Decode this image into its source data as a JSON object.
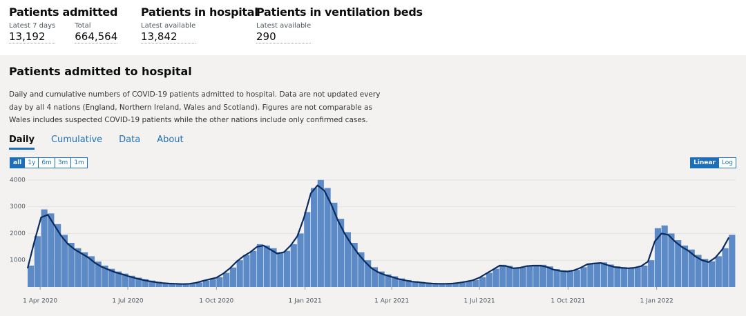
{
  "headline": [
    {
      "title": "Patients admitted",
      "items": [
        {
          "label": "Latest 7 days",
          "value": "13,192"
        },
        {
          "label": "Total",
          "value": "664,564"
        }
      ]
    },
    {
      "title": "Patients in hospital",
      "items": [
        {
          "label": "Latest available",
          "value": "13,842"
        }
      ]
    },
    {
      "title": "Patients in ventilation beds",
      "items": [
        {
          "label": "Latest available",
          "value": "290"
        }
      ]
    }
  ],
  "card": {
    "title": "Patients admitted to hospital",
    "description": "Daily and cumulative numbers of COVID-19 patients admitted to hospital. Data are not updated every day by all 4 nations (England, Northern Ireland, Wales and Scotland). Figures are not comparable as Wales includes suspected COVID-19 patients while the other nations include only confirmed cases.",
    "tabs": [
      "Daily",
      "Cumulative",
      "Data",
      "About"
    ],
    "range_buttons": [
      "all",
      "1y",
      "6m",
      "3m",
      "1m"
    ],
    "scale_buttons": [
      "Linear",
      "Log"
    ]
  },
  "chart_data": {
    "type": "bar",
    "grid": true,
    "log_scale": false,
    "xlim": [
      "2020-03-19",
      "2022-03-24"
    ],
    "xticks": [
      {
        "value": "2020-04-01",
        "label": "1 Apr 2020"
      },
      {
        "value": "2020-07-01",
        "label": "1 Jul 2020"
      },
      {
        "value": "2020-10-01",
        "label": "1 Oct 2020"
      },
      {
        "value": "2021-01-01",
        "label": "1 Jan 2021"
      },
      {
        "value": "2021-04-01",
        "label": "1 Apr 2021"
      },
      {
        "value": "2021-07-01",
        "label": "1 Jul 2021"
      },
      {
        "value": "2021-10-01",
        "label": "1 Oct 2021"
      },
      {
        "value": "2022-01-01",
        "label": "1 Jan 2022"
      }
    ],
    "ylim": [
      0,
      4150
    ],
    "yticks": [
      1000,
      2000,
      3000,
      4000
    ],
    "x": [
      "2020-03-19",
      "2020-03-26",
      "2020-04-02",
      "2020-04-09",
      "2020-04-16",
      "2020-04-23",
      "2020-04-30",
      "2020-05-07",
      "2020-05-14",
      "2020-05-21",
      "2020-05-28",
      "2020-06-04",
      "2020-06-11",
      "2020-06-18",
      "2020-06-25",
      "2020-07-02",
      "2020-07-09",
      "2020-07-16",
      "2020-07-23",
      "2020-07-30",
      "2020-08-06",
      "2020-08-13",
      "2020-08-20",
      "2020-08-27",
      "2020-09-03",
      "2020-09-10",
      "2020-09-17",
      "2020-09-24",
      "2020-10-01",
      "2020-10-08",
      "2020-10-15",
      "2020-10-22",
      "2020-10-29",
      "2020-11-05",
      "2020-11-12",
      "2020-11-19",
      "2020-11-26",
      "2020-12-03",
      "2020-12-10",
      "2020-12-17",
      "2020-12-24",
      "2020-12-31",
      "2021-01-07",
      "2021-01-14",
      "2021-01-21",
      "2021-01-28",
      "2021-02-04",
      "2021-02-11",
      "2021-02-18",
      "2021-02-25",
      "2021-03-04",
      "2021-03-11",
      "2021-03-18",
      "2021-03-25",
      "2021-04-01",
      "2021-04-08",
      "2021-04-15",
      "2021-04-22",
      "2021-04-29",
      "2021-05-06",
      "2021-05-13",
      "2021-05-20",
      "2021-05-27",
      "2021-06-03",
      "2021-06-10",
      "2021-06-17",
      "2021-06-24",
      "2021-07-01",
      "2021-07-08",
      "2021-07-15",
      "2021-07-22",
      "2021-07-29",
      "2021-08-05",
      "2021-08-12",
      "2021-08-19",
      "2021-08-26",
      "2021-09-02",
      "2021-09-09",
      "2021-09-16",
      "2021-09-23",
      "2021-09-30",
      "2021-10-07",
      "2021-10-14",
      "2021-10-21",
      "2021-10-28",
      "2021-11-04",
      "2021-11-11",
      "2021-11-18",
      "2021-11-25",
      "2021-12-02",
      "2021-12-09",
      "2021-12-16",
      "2021-12-23",
      "2021-12-30",
      "2022-01-06",
      "2022-01-13",
      "2022-01-20",
      "2022-01-27",
      "2022-02-03",
      "2022-02-10",
      "2022-02-17",
      "2022-02-24",
      "2022-03-03",
      "2022-03-10",
      "2022-03-17"
    ],
    "series": [
      {
        "type": "bar",
        "color": "#5b8ac6",
        "values": [
          800,
          1900,
          2900,
          2750,
          2350,
          1950,
          1650,
          1450,
          1300,
          1150,
          950,
          800,
          680,
          580,
          500,
          420,
          350,
          290,
          240,
          190,
          160,
          140,
          125,
          115,
          125,
          170,
          240,
          300,
          370,
          530,
          730,
          1000,
          1200,
          1350,
          1600,
          1550,
          1450,
          1300,
          1350,
          1600,
          2000,
          2800,
          3700,
          4000,
          3700,
          3150,
          2550,
          2050,
          1650,
          1300,
          1000,
          740,
          580,
          470,
          400,
          320,
          260,
          210,
          190,
          160,
          140,
          125,
          125,
          140,
          170,
          210,
          260,
          370,
          530,
          680,
          830,
          790,
          720,
          740,
          800,
          820,
          830,
          770,
          670,
          620,
          600,
          640,
          740,
          880,
          910,
          920,
          840,
          770,
          740,
          720,
          740,
          800,
          1000,
          2200,
          2300,
          2000,
          1750,
          1550,
          1400,
          1200,
          1050,
          960,
          1150,
          1450,
          1950
        ]
      },
      {
        "type": "line",
        "color": "#0b2a5e",
        "values": [
          700,
          1700,
          2600,
          2700,
          2300,
          1900,
          1600,
          1400,
          1250,
          1100,
          900,
          750,
          650,
          550,
          480,
          400,
          330,
          270,
          220,
          180,
          150,
          130,
          120,
          110,
          120,
          160,
          230,
          290,
          350,
          500,
          700,
          950,
          1150,
          1300,
          1500,
          1550,
          1400,
          1250,
          1300,
          1550,
          1900,
          2600,
          3500,
          3800,
          3600,
          3100,
          2500,
          2000,
          1600,
          1250,
          950,
          700,
          550,
          450,
          380,
          300,
          250,
          200,
          180,
          150,
          130,
          120,
          120,
          130,
          160,
          200,
          250,
          350,
          500,
          650,
          800,
          780,
          700,
          720,
          780,
          800,
          800,
          750,
          650,
          600,
          580,
          620,
          720,
          850,
          880,
          900,
          820,
          750,
          720,
          700,
          720,
          780,
          950,
          1700,
          2000,
          1950,
          1700,
          1500,
          1350,
          1150,
          1000,
          930,
          1100,
          1400,
          1850
        ]
      }
    ]
  }
}
